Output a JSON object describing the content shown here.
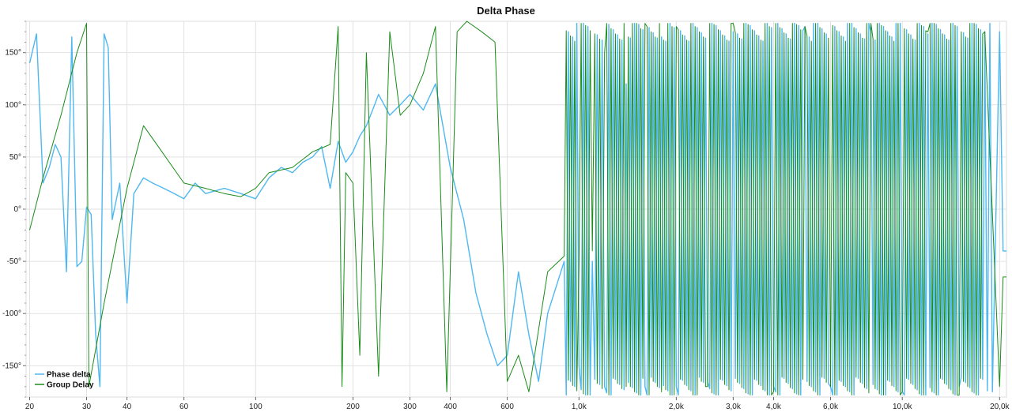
{
  "chart_data": {
    "type": "line",
    "title": "Delta Phase",
    "xlabel": "",
    "ylabel": "",
    "x_scale": "log",
    "xlim": [
      19.5,
      21000
    ],
    "ylim": [
      -180,
      180
    ],
    "grid": true,
    "legend_position": "bottom-left",
    "x_ticks": [
      {
        "value": 20,
        "label": "20"
      },
      {
        "value": 30,
        "label": "30"
      },
      {
        "value": 40,
        "label": "40"
      },
      {
        "value": 60,
        "label": "60"
      },
      {
        "value": 100,
        "label": "100"
      },
      {
        "value": 200,
        "label": "200"
      },
      {
        "value": 300,
        "label": "300"
      },
      {
        "value": 400,
        "label": "400"
      },
      {
        "value": 600,
        "label": "600"
      },
      {
        "value": 1000,
        "label": "1,0k"
      },
      {
        "value": 2000,
        "label": "2,0k"
      },
      {
        "value": 3000,
        "label": "3,0k"
      },
      {
        "value": 4000,
        "label": "4,0k"
      },
      {
        "value": 6000,
        "label": "6,0k"
      },
      {
        "value": 10000,
        "label": "10,0k"
      },
      {
        "value": 20000,
        "label": "20,0k"
      }
    ],
    "y_ticks": [
      {
        "value": 150,
        "label": "150°"
      },
      {
        "value": 100,
        "label": "100°"
      },
      {
        "value": 50,
        "label": "50°"
      },
      {
        "value": 0,
        "label": "0°"
      },
      {
        "value": -50,
        "label": "-50°"
      },
      {
        "value": -100,
        "label": "-100°"
      },
      {
        "value": -150,
        "label": "-150°"
      }
    ],
    "series": [
      {
        "name": "Phase delta",
        "color": "#4fb8f0",
        "x": [
          20,
          21,
          22,
          23,
          24,
          25,
          26,
          27,
          28,
          29,
          30,
          31,
          32,
          33,
          34,
          35,
          36,
          38,
          40,
          42,
          45,
          48,
          52,
          56,
          60,
          65,
          70,
          80,
          90,
          100,
          110,
          120,
          130,
          140,
          150,
          160,
          170,
          180,
          190,
          200,
          210,
          220,
          230,
          240,
          260,
          280,
          300,
          330,
          360,
          400,
          440,
          480,
          520,
          560,
          600,
          650,
          700,
          750,
          800,
          900,
          1000,
          1100,
          1200,
          1400,
          1600,
          1800,
          2000,
          2500,
          3000,
          4000,
          5000,
          6000,
          8000,
          10000,
          12000,
          15000,
          18000,
          19000,
          20000,
          20500,
          21000
        ],
        "values": [
          140,
          168,
          25,
          40,
          62,
          50,
          -60,
          165,
          -55,
          -50,
          2,
          -5,
          -120,
          -170,
          168,
          155,
          -10,
          25,
          -90,
          15,
          30,
          25,
          20,
          15,
          10,
          25,
          15,
          20,
          15,
          10,
          30,
          40,
          35,
          45,
          50,
          60,
          20,
          65,
          45,
          55,
          70,
          80,
          95,
          110,
          90,
          100,
          110,
          95,
          120,
          40,
          -10,
          -80,
          -120,
          -150,
          -140,
          -60,
          -120,
          -165,
          -100,
          -50,
          -150,
          -50,
          -170,
          120,
          -170,
          165,
          -170,
          -165,
          170,
          -170,
          175,
          -170,
          170,
          -175,
          168,
          -170,
          170,
          -175,
          170,
          -40,
          -40
        ]
      },
      {
        "name": "Group Delay",
        "color": "#1a8c1a",
        "x": [
          20,
          22,
          25,
          28,
          30,
          30.5,
          34,
          40,
          45,
          50,
          60,
          70,
          80,
          90,
          100,
          110,
          130,
          150,
          170,
          180,
          185,
          190,
          200,
          210,
          220,
          240,
          260,
          280,
          300,
          330,
          360,
          390,
          420,
          450,
          500,
          550,
          600,
          650,
          700,
          800,
          900,
          1000,
          1100,
          1200,
          1400,
          1600,
          1800,
          2000,
          2500,
          3000,
          4000,
          5000,
          6000,
          8000,
          10000,
          12000,
          15000,
          18000,
          20000,
          20500,
          21000
        ],
        "values": [
          -20,
          30,
          90,
          150,
          178,
          -170,
          -90,
          20,
          80,
          60,
          25,
          20,
          15,
          12,
          20,
          35,
          40,
          55,
          62,
          175,
          -170,
          35,
          25,
          -140,
          150,
          -160,
          170,
          90,
          100,
          130,
          175,
          -175,
          170,
          180,
          170,
          160,
          -165,
          -140,
          -175,
          -60,
          -45,
          -55,
          -40,
          150,
          -170,
          178,
          -175,
          175,
          -170,
          178,
          -175,
          175,
          -170,
          178,
          -175,
          170,
          -178,
          170,
          -170,
          -65,
          -65
        ]
      }
    ]
  }
}
